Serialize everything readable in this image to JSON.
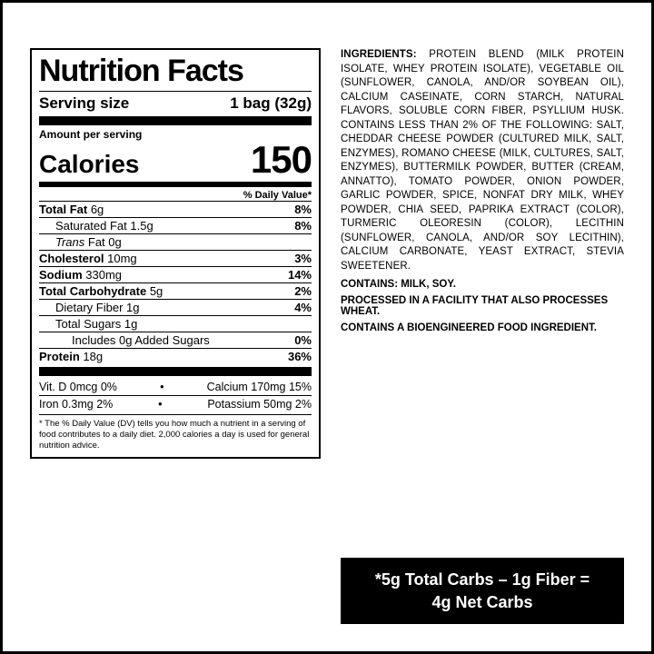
{
  "title": "Nutrition Facts",
  "serving": {
    "label": "Serving size",
    "value": "1 bag (32g)"
  },
  "aps": "Amount per serving",
  "calories": {
    "label": "Calories",
    "value": "150"
  },
  "dvHeader": "% Daily Value*",
  "rows": [
    {
      "label": "Total Fat",
      "amt": "6g",
      "dv": "8%",
      "bold": true,
      "indent": 0,
      "line": true
    },
    {
      "label": "Saturated Fat",
      "amt": "1.5g",
      "dv": "8%",
      "bold": false,
      "indent": 1,
      "line": true
    },
    {
      "label": "Trans Fat",
      "amt": "0g",
      "dv": "",
      "bold": false,
      "indent": 1,
      "italicLabel": true,
      "line": true
    },
    {
      "label": "Cholesterol",
      "amt": "10mg",
      "dv": "3%",
      "bold": true,
      "indent": 0,
      "line": true
    },
    {
      "label": "Sodium",
      "amt": "330mg",
      "dv": "14%",
      "bold": true,
      "indent": 0,
      "line": true
    },
    {
      "label": "Total Carbohydrate",
      "amt": "5g",
      "dv": "2%",
      "bold": true,
      "indent": 0,
      "line": true
    },
    {
      "label": "Dietary Fiber",
      "amt": "1g",
      "dv": "4%",
      "bold": false,
      "indent": 1,
      "line": true
    },
    {
      "label": "Total Sugars",
      "amt": "1g",
      "dv": "",
      "bold": false,
      "indent": 1,
      "line": true
    },
    {
      "label": "Includes 0g Added Sugars",
      "amt": "",
      "dv": "0%",
      "bold": false,
      "indent": 2,
      "line": true
    },
    {
      "label": "Protein",
      "amt": "18g",
      "dv": "36%",
      "bold": true,
      "indent": 0,
      "line": true
    }
  ],
  "vm": {
    "r1l": "Vit. D 0mcg 0%",
    "r1r": "Calcium 170mg 15%",
    "r2l": "Iron 0.3mg 2%",
    "r2r": "Potassium 50mg 2%"
  },
  "footnote": "* The % Daily Value (DV) tells you how much a nutrient in a serving of food contributes to a daily diet. 2,000 calories a day is used for general nutrition advice.",
  "ingLabel": "INGREDIENTS:",
  "ingText": " PROTEIN BLEND (MILK PROTEIN ISOLATE, WHEY PROTEIN ISOLATE), VEGETABLE OIL (SUNFLOWER, CANOLA, AND/OR SOYBEAN OIL), CALCIUM CASEINATE, CORN STARCH, NATURAL FLAVORS, SOLUBLE CORN FIBER, PSYLLIUM HUSK. CONTAINS LESS THAN 2% OF THE FOLLOWING: SALT, CHEDDAR CHEESE POWDER (CULTURED MILK, SALT, ENZYMES), ROMANO CHEESE (MILK, CULTURES, SALT, ENZYMES), BUTTERMILK POWDER, BUTTER (CREAM, ANNATTO), TOMATO POWDER, ONION POWDER, GARLIC POWDER, SPICE, NONFAT DRY MILK, WHEY POWDER, CHIA SEED, PAPRIKA EXTRACT (COLOR), TURMERIC OLEORESIN (COLOR), LECITHIN (SUNFLOWER, CANOLA, AND/OR SOY LECITHIN), CALCIUM CARBONATE, YEAST EXTRACT, STEVIA SWEETENER.",
  "contains": "CONTAINS: MILK, SOY.",
  "facility": "PROCESSED IN A FACILITY THAT ALSO PROCESSES WHEAT.",
  "bio": "CONTAINS A BIOENGINEERED FOOD INGREDIENT.",
  "net": {
    "l1": "*5g Total Carbs – 1g Fiber =",
    "l2": "4g Net Carbs"
  }
}
